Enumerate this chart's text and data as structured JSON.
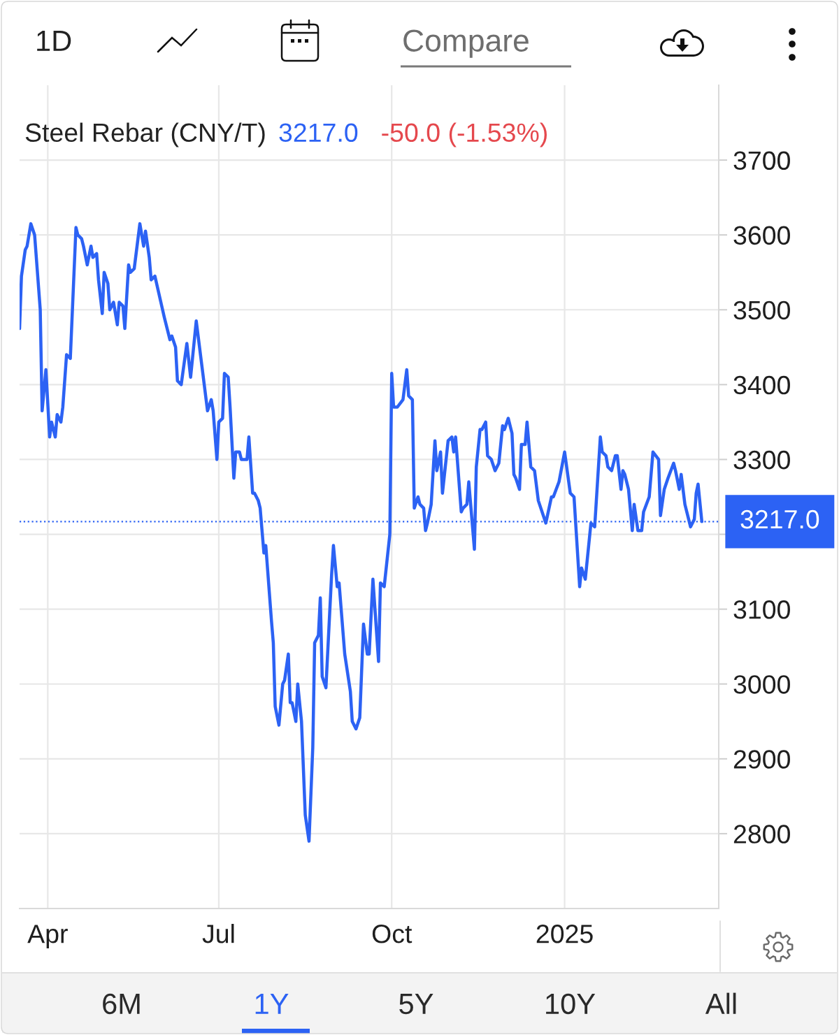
{
  "chart_data": {
    "type": "line",
    "title": "Steel Rebar (CNY/T)",
    "annotations": [
      "3217.0",
      "-50.0 (-1.53%)",
      "1D",
      "Compare",
      "6M",
      "1Y",
      "5Y",
      "10Y",
      "All"
    ],
    "series": [
      {
        "color": "#2c62f4",
        "x": [
          "2024-03-17",
          "2024-03-18",
          "2024-03-20",
          "2024-03-21",
          "2024-03-23",
          "2024-03-25",
          "2024-03-28",
          "2024-03-29",
          "2024-03-31",
          "2024-04-02",
          "2024-04-03",
          "2024-04-05",
          "2024-04-06",
          "2024-04-08",
          "2024-04-09",
          "2024-04-11",
          "2024-04-13",
          "2024-04-16",
          "2024-04-17",
          "2024-04-19",
          "2024-04-20",
          "2024-04-22",
          "2024-04-24",
          "2024-04-25",
          "2024-04-27",
          "2024-04-28",
          "2024-04-30",
          "2024-05-01",
          "2024-05-03",
          "2024-05-04",
          "2024-05-06",
          "2024-05-08",
          "2024-05-09",
          "2024-05-11",
          "2024-05-12",
          "2024-05-14",
          "2024-05-15",
          "2024-05-17",
          "2024-05-20",
          "2024-05-22",
          "2024-05-23",
          "2024-05-25",
          "2024-05-26",
          "2024-05-28",
          "2024-06-02",
          "2024-06-05",
          "2024-06-06",
          "2024-06-08",
          "2024-06-09",
          "2024-06-11",
          "2024-06-14",
          "2024-06-16",
          "2024-06-19",
          "2024-06-25",
          "2024-06-27",
          "2024-06-28",
          "2024-06-30",
          "2024-07-01",
          "2024-07-03",
          "2024-07-04",
          "2024-07-06",
          "2024-07-07",
          "2024-07-09",
          "2024-07-10",
          "2024-07-12",
          "2024-07-13",
          "2024-07-16",
          "2024-07-17",
          "2024-07-19",
          "2024-07-20",
          "2024-07-22",
          "2024-07-23",
          "2024-07-25",
          "2024-07-26",
          "2024-07-29",
          "2024-07-30",
          "2024-07-31",
          "2024-08-02",
          "2024-08-04",
          "2024-08-05",
          "2024-08-07",
          "2024-08-08",
          "2024-08-09",
          "2024-08-11",
          "2024-08-12",
          "2024-08-14",
          "2024-08-16",
          "2024-08-18",
          "2024-08-20",
          "2024-08-21",
          "2024-08-23",
          "2024-08-24",
          "2024-08-25",
          "2024-08-27",
          "2024-08-30",
          "2024-08-31",
          "2024-09-02",
          "2024-09-03",
          "2024-09-06",
          "2024-09-09",
          "2024-09-10",
          "2024-09-12",
          "2024-09-14",
          "2024-09-16",
          "2024-09-18",
          "2024-09-19",
          "2024-09-21",
          "2024-09-24",
          "2024-09-25",
          "2024-09-27",
          "2024-09-30",
          "2024-10-01",
          "2024-10-02",
          "2024-10-04",
          "2024-10-07",
          "2024-10-09",
          "2024-10-10",
          "2024-10-12",
          "2024-10-13",
          "2024-10-15",
          "2024-10-16",
          "2024-10-18",
          "2024-10-19",
          "2024-10-20",
          "2024-10-22",
          "2024-10-24",
          "2024-10-25",
          "2024-10-27",
          "2024-10-28",
          "2024-10-31",
          "2024-11-02",
          "2024-11-03",
          "2024-11-04",
          "2024-11-07",
          "2024-11-08",
          "2024-11-10",
          "2024-11-11",
          "2024-11-12",
          "2024-11-14",
          "2024-11-15",
          "2024-11-17",
          "2024-11-18",
          "2024-11-20",
          "2024-11-21",
          "2024-11-23",
          "2024-11-25",
          "2024-11-27",
          "2024-11-29",
          "2024-11-30",
          "2024-12-02",
          "2024-12-04",
          "2024-12-05",
          "2024-12-06",
          "2024-12-08",
          "2024-12-09",
          "2024-12-11",
          "2024-12-12",
          "2024-12-14",
          "2024-12-16",
          "2024-12-18",
          "2024-12-22",
          "2024-12-25",
          "2024-12-26",
          "2024-12-29",
          "2025-01-01",
          "2025-01-04",
          "2025-01-06",
          "2025-01-09",
          "2025-01-10",
          "2025-01-12",
          "2025-01-15",
          "2025-01-17",
          "2025-01-20",
          "2025-01-21",
          "2025-01-23",
          "2025-01-24",
          "2025-01-26",
          "2025-01-28",
          "2025-01-29",
          "2025-01-31",
          "2025-02-01",
          "2025-02-02",
          "2025-02-04",
          "2025-02-06",
          "2025-02-07",
          "2025-02-09",
          "2025-02-11",
          "2025-02-12",
          "2025-02-15",
          "2025-02-17",
          "2025-02-20",
          "2025-02-21",
          "2025-02-23",
          "2025-02-25",
          "2025-02-28",
          "2025-03-01",
          "2025-03-03",
          "2025-03-04",
          "2025-03-06",
          "2025-03-09",
          "2025-03-11",
          "2025-03-12",
          "2025-03-13",
          "2025-03-15"
        ],
        "values": [
          3475,
          3545,
          3580,
          3585,
          3615,
          3600,
          3500,
          3365,
          3420,
          3330,
          3350,
          3330,
          3360,
          3350,
          3370,
          3440,
          3435,
          3610,
          3600,
          3595,
          3585,
          3560,
          3585,
          3570,
          3575,
          3540,
          3495,
          3550,
          3535,
          3500,
          3510,
          3480,
          3510,
          3505,
          3475,
          3560,
          3550,
          3555,
          3615,
          3585,
          3605,
          3570,
          3540,
          3545,
          3490,
          3460,
          3465,
          3450,
          3405,
          3400,
          3455,
          3410,
          3485,
          3365,
          3380,
          3365,
          3300,
          3350,
          3355,
          3415,
          3410,
          3370,
          3275,
          3310,
          3310,
          3300,
          3300,
          3330,
          3255,
          3255,
          3245,
          3235,
          3175,
          3185,
          3085,
          3055,
          2970,
          2945,
          3000,
          3005,
          3040,
          2975,
          2975,
          2950,
          3000,
          2950,
          2825,
          2790,
          2915,
          3055,
          3065,
          3115,
          3010,
          2995,
          3145,
          3185,
          3130,
          3135,
          3040,
          2990,
          2950,
          2940,
          2955,
          3080,
          3040,
          3040,
          3140,
          3030,
          3135,
          3130,
          3200,
          3415,
          3370,
          3370,
          3380,
          3420,
          3385,
          3380,
          3235,
          3250,
          3240,
          3235,
          3205,
          3215,
          3240,
          3325,
          3285,
          3310,
          3255,
          3325,
          3330,
          3310,
          3330,
          3230,
          3235,
          3240,
          3270,
          3240,
          3180,
          3290,
          3340,
          3340,
          3350,
          3305,
          3300,
          3285,
          3295,
          3345,
          3340,
          3355,
          3335,
          3280,
          3275,
          3260,
          3320,
          3320,
          3350,
          3290,
          3285,
          3245,
          3215,
          3250,
          3250,
          3270,
          3310,
          3255,
          3250,
          3130,
          3155,
          3140,
          3215,
          3210,
          3330,
          3310,
          3305,
          3290,
          3285,
          3305,
          3305,
          3260,
          3285,
          3280,
          3260,
          3205,
          3240,
          3205,
          3205,
          3230,
          3250,
          3310,
          3300,
          3225,
          3260,
          3275,
          3295,
          3285,
          3260,
          3280,
          3240,
          3210,
          3220,
          3255,
          3267,
          3217
        ]
      }
    ],
    "xlim": [
      "2024-03-17",
      "2025-03-24"
    ],
    "xticks": [
      {
        "value": "2024-04-01",
        "label": "Apr"
      },
      {
        "value": "2024-07-01",
        "label": "Jul"
      },
      {
        "value": "2024-10-01",
        "label": "Oct"
      },
      {
        "value": "2025-01-01",
        "label": "2025"
      }
    ],
    "ylim": [
      2700,
      3800
    ],
    "yticks": [
      2800,
      2900,
      3000,
      3100,
      {
        "value": 3200,
        "label": null
      },
      3300,
      3400,
      3500,
      3600,
      3700
    ],
    "ref_lines": [
      {
        "axis": "y",
        "value": 3217,
        "label": "3217.0",
        "color": "#2c62f4",
        "line_style": "dotted"
      }
    ],
    "grid": true
  }
}
